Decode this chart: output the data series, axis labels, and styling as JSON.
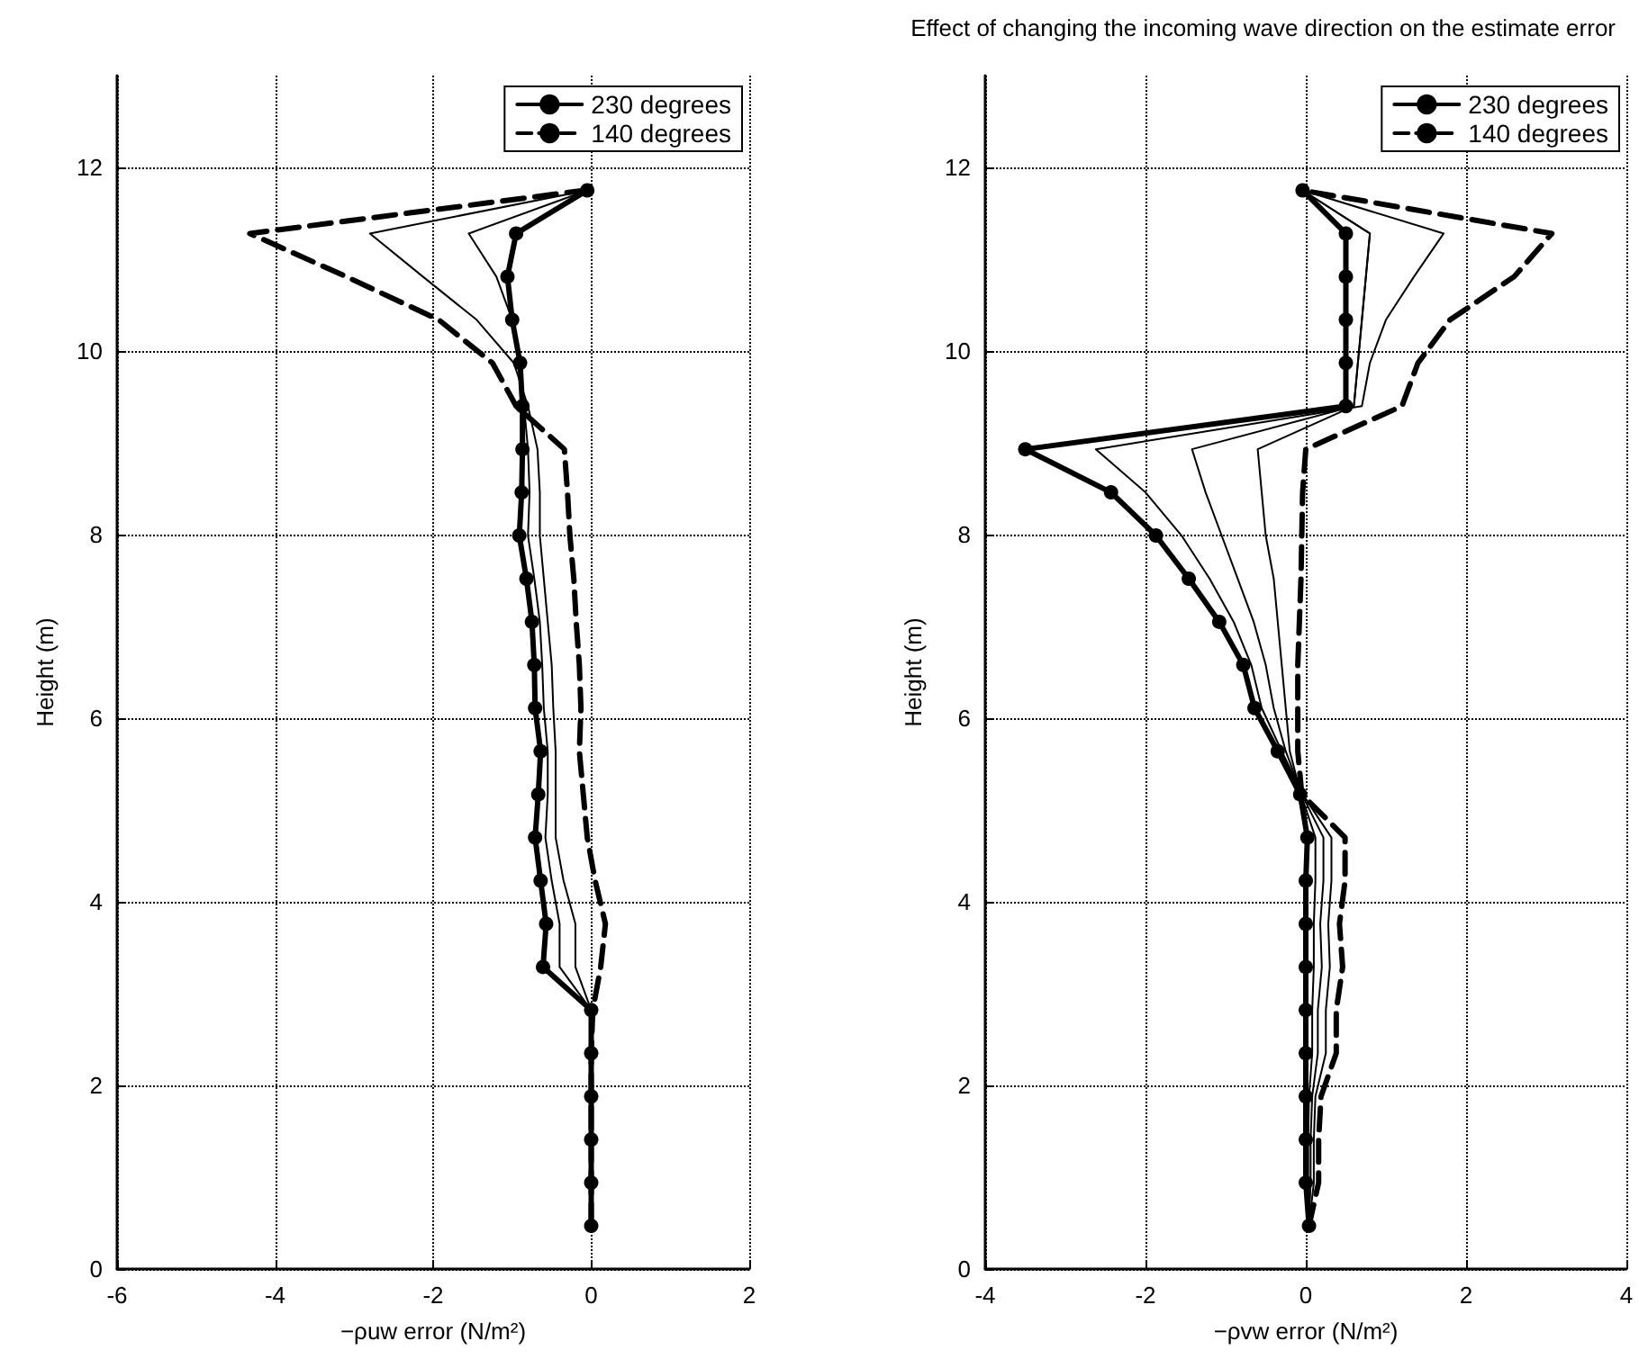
{
  "chart_data": [
    {
      "type": "line",
      "xlabel": "−ρuw error (N/m²)",
      "ylabel": "Height (m)",
      "xlim": [
        -6,
        2
      ],
      "xticks": [
        -6,
        -4,
        -2,
        0,
        2
      ],
      "ylim": [
        0,
        13
      ],
      "yticks": [
        0,
        2,
        4,
        6,
        8,
        10,
        12
      ],
      "grid": true,
      "legend": "top right",
      "series": [
        {
          "color": "#000000",
          "x": [
            0,
            0,
            0,
            0,
            0,
            0,
            -0.2,
            -0.2,
            -0.35,
            -0.45,
            -0.45,
            -0.45,
            -0.48,
            -0.5,
            -0.55,
            -0.6,
            -0.65,
            -0.65,
            -0.68,
            -0.8,
            -0.98,
            -1.45,
            -2.13,
            -2.8,
            -0.05
          ],
          "values": [
            0.47,
            0.94,
            1.41,
            1.88,
            2.35,
            2.82,
            3.29,
            3.76,
            4.23,
            4.7,
            5.17,
            5.64,
            6.11,
            6.58,
            7.05,
            7.52,
            7.99,
            8.46,
            8.93,
            9.4,
            9.87,
            10.34,
            10.81,
            11.28,
            11.75
          ]
        },
        {
          "color": "#000000",
          "x": [
            0,
            0,
            0,
            0,
            0,
            0,
            -0.4,
            -0.4,
            -0.5,
            -0.58,
            -0.55,
            -0.55,
            -0.6,
            -0.62,
            -0.65,
            -0.72,
            -0.8,
            -0.78,
            -0.8,
            -0.85,
            -0.9,
            -1.0,
            -1.2,
            -1.55,
            -0.05
          ],
          "values": [
            0.47,
            0.94,
            1.41,
            1.88,
            2.35,
            2.82,
            3.29,
            3.76,
            4.23,
            4.7,
            5.17,
            5.64,
            6.11,
            6.58,
            7.05,
            7.52,
            7.99,
            8.46,
            8.93,
            9.4,
            9.87,
            10.34,
            10.81,
            11.28,
            11.75
          ]
        },
        {
          "name": "230 degrees",
          "color": "#000000",
          "marker": "circle",
          "x": [
            0,
            0,
            0,
            0,
            0,
            0,
            -0.61,
            -0.57,
            -0.64,
            -0.71,
            -0.67,
            -0.64,
            -0.71,
            -0.72,
            -0.75,
            -0.82,
            -0.91,
            -0.88,
            -0.87,
            -0.87,
            -0.9,
            -1.0,
            -1.06,
            -0.95,
            -0.05
          ],
          "values": [
            0.47,
            0.94,
            1.41,
            1.88,
            2.35,
            2.82,
            3.29,
            3.76,
            4.23,
            4.7,
            5.17,
            5.64,
            6.11,
            6.58,
            7.05,
            7.52,
            7.99,
            8.46,
            8.93,
            9.4,
            9.87,
            10.34,
            10.81,
            11.28,
            11.75
          ]
        },
        {
          "name": "140 degrees",
          "color": "#000000",
          "line_style": "dashed",
          "x": [
            0,
            0,
            0,
            0,
            0,
            0.02,
            0.12,
            0.18,
            0.05,
            -0.05,
            -0.1,
            -0.15,
            -0.13,
            -0.15,
            -0.19,
            -0.22,
            -0.27,
            -0.3,
            -0.34,
            -0.95,
            -1.25,
            -1.93,
            -3.1,
            -4.32,
            -0.08
          ],
          "values": [
            0.47,
            0.94,
            1.41,
            1.88,
            2.35,
            2.82,
            3.29,
            3.76,
            4.23,
            4.7,
            5.17,
            5.64,
            6.11,
            6.58,
            7.05,
            7.52,
            7.99,
            8.46,
            8.93,
            9.4,
            9.87,
            10.34,
            10.81,
            11.28,
            11.75
          ]
        }
      ]
    },
    {
      "type": "line",
      "title": "Effect of changing the incoming wave direction on the estimate error",
      "xlabel": "−ρvw error (N/m²)",
      "ylabel": "Height (m)",
      "xlim": [
        -4,
        4
      ],
      "xticks": [
        -4,
        -2,
        0,
        2,
        4
      ],
      "ylim": [
        0,
        13
      ],
      "yticks": [
        0,
        2,
        4,
        6,
        8,
        10,
        12
      ],
      "grid": true,
      "legend": "top right",
      "series": [
        {
          "color": "#000000",
          "x": [
            0.04,
            0.1,
            0.1,
            0.12,
            0.25,
            0.25,
            0.3,
            0.28,
            0.32,
            0.32,
            -0.04,
            -0.3,
            -0.55,
            -0.68,
            -0.9,
            -1.2,
            -1.55,
            -2.0,
            -2.62,
            0.7,
            0.8,
            1.0,
            1.35,
            1.72,
            -0.04
          ],
          "values": [
            0.47,
            0.94,
            1.41,
            1.88,
            2.35,
            2.82,
            3.29,
            3.76,
            4.23,
            4.7,
            5.17,
            5.64,
            6.11,
            6.58,
            7.05,
            7.52,
            7.99,
            8.46,
            8.93,
            9.4,
            9.87,
            10.34,
            10.81,
            11.28,
            11.75
          ]
        },
        {
          "color": "#000000",
          "x": [
            0.04,
            0.06,
            0.06,
            0.08,
            0.15,
            0.15,
            0.2,
            0.18,
            0.22,
            0.22,
            -0.05,
            -0.25,
            -0.4,
            -0.5,
            -0.65,
            -0.85,
            -1.05,
            -1.25,
            -1.42,
            0.6,
            0.65,
            0.7,
            0.75,
            0.8,
            -0.04
          ],
          "values": [
            0.47,
            0.94,
            1.41,
            1.88,
            2.35,
            2.82,
            3.29,
            3.76,
            4.23,
            4.7,
            5.17,
            5.64,
            6.11,
            6.58,
            7.05,
            7.52,
            7.99,
            8.46,
            8.93,
            9.4,
            9.87,
            10.34,
            10.81,
            11.28,
            11.75
          ]
        },
        {
          "color": "#000000",
          "x": [
            0.04,
            0.03,
            0.03,
            0.04,
            0.08,
            0.08,
            0.1,
            0.1,
            0.12,
            0.12,
            -0.06,
            -0.2,
            -0.25,
            -0.3,
            -0.35,
            -0.4,
            -0.5,
            -0.55,
            -0.6,
            0.6,
            0.65,
            0.7,
            0.75,
            0.8,
            -0.04
          ],
          "values": [
            0.47,
            0.94,
            1.41,
            1.88,
            2.35,
            2.82,
            3.29,
            3.76,
            4.23,
            4.7,
            5.17,
            5.64,
            6.11,
            6.58,
            7.05,
            7.52,
            7.99,
            8.46,
            8.93,
            9.4,
            9.87,
            10.34,
            10.81,
            11.28,
            11.75
          ]
        },
        {
          "name": "230 degrees",
          "color": "#000000",
          "marker": "circle",
          "x": [
            0.04,
            0,
            0,
            0,
            0,
            0,
            0,
            0,
            0,
            0.02,
            -0.07,
            -0.35,
            -0.64,
            -0.78,
            -1.08,
            -1.46,
            -1.87,
            -2.43,
            -3.5,
            0.5,
            0.5,
            0.5,
            0.5,
            0.5,
            -0.04
          ],
          "values": [
            0.47,
            0.94,
            1.41,
            1.88,
            2.35,
            2.82,
            3.29,
            3.76,
            4.23,
            4.7,
            5.17,
            5.64,
            6.11,
            6.58,
            7.05,
            7.52,
            7.99,
            8.46,
            8.93,
            9.4,
            9.87,
            10.34,
            10.81,
            11.28,
            11.75
          ]
        },
        {
          "name": "140 degrees",
          "color": "#000000",
          "line_style": "dashed",
          "x": [
            0.04,
            0.16,
            0.16,
            0.19,
            0.38,
            0.38,
            0.46,
            0.42,
            0.49,
            0.49,
            -0.05,
            -0.1,
            -0.1,
            -0.1,
            -0.08,
            -0.06,
            -0.05,
            -0.04,
            0,
            1.2,
            1.4,
            1.8,
            2.6,
            3.07,
            -0.04
          ],
          "values": [
            0.47,
            0.94,
            1.41,
            1.88,
            2.35,
            2.82,
            3.29,
            3.76,
            4.23,
            4.7,
            5.17,
            5.64,
            6.11,
            6.58,
            7.05,
            7.52,
            7.99,
            8.46,
            8.93,
            9.4,
            9.87,
            10.34,
            10.81,
            11.28,
            11.75
          ]
        }
      ]
    }
  ]
}
